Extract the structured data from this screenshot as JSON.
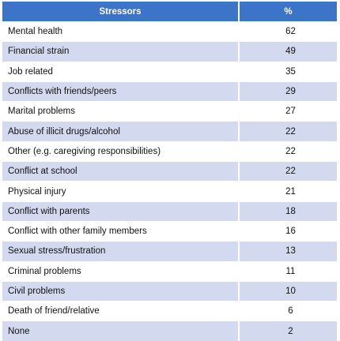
{
  "table": {
    "headers": {
      "stressor": "Stressors",
      "percent": "%"
    },
    "rows": [
      {
        "stressor": "Mental health",
        "percent": "62"
      },
      {
        "stressor": "Financial strain",
        "percent": "49"
      },
      {
        "stressor": "Job related",
        "percent": "35"
      },
      {
        "stressor": "Conflicts with friends/peers",
        "percent": "29"
      },
      {
        "stressor": "Marital problems",
        "percent": "27"
      },
      {
        "stressor": "Abuse of illicit drugs/alcohol",
        "percent": "22"
      },
      {
        "stressor": "Other (e.g. caregiving responsibilities)",
        "percent": "22"
      },
      {
        "stressor": "Conflict at school",
        "percent": "22"
      },
      {
        "stressor": "Physical injury",
        "percent": "21"
      },
      {
        "stressor": "Conflict with parents",
        "percent": "18"
      },
      {
        "stressor": "Conflict with other family members",
        "percent": "16"
      },
      {
        "stressor": "Sexual stress/frustration",
        "percent": "13"
      },
      {
        "stressor": "Criminal problems",
        "percent": "11"
      },
      {
        "stressor": "Civil problems",
        "percent": "10"
      },
      {
        "stressor": "Death of friend/relative",
        "percent": "6"
      },
      {
        "stressor": "None",
        "percent": "2"
      }
    ]
  },
  "colors": {
    "header_bg": "#3c74c8",
    "stripe_bg": "#d3d9ee"
  }
}
